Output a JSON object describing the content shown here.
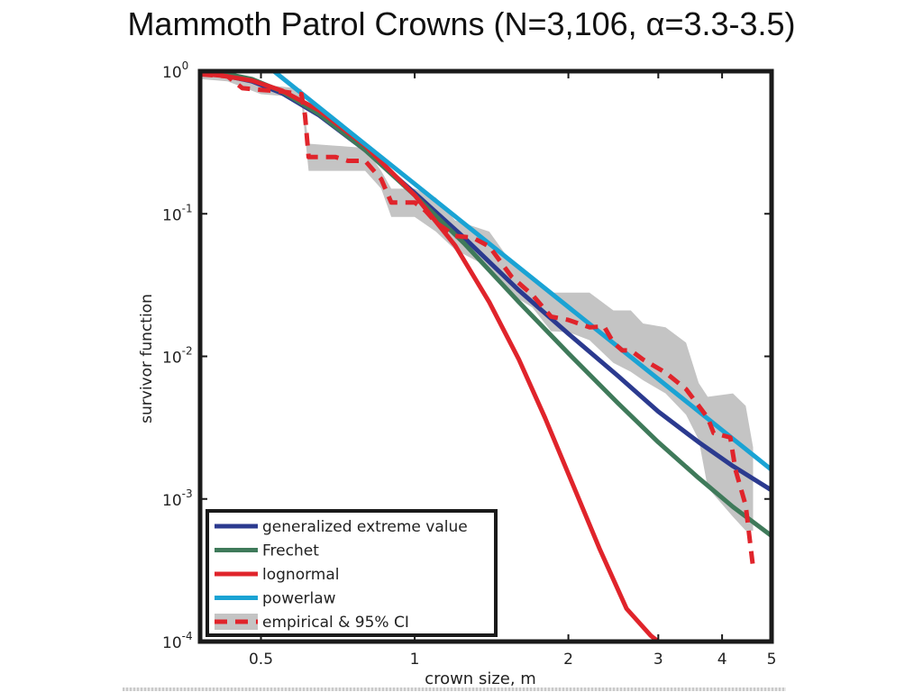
{
  "page": {
    "title": "Mammoth Patrol Crowns (N=3,106, α=3.3-3.5)"
  },
  "colors": {
    "generalized_extreme_value": "#2b3a8f",
    "frechet": "#3f7a5a",
    "lognormal": "#e0242b",
    "powerlaw": "#1aa3d4",
    "empirical": "#e0242b",
    "ci_band": "#c4c4c4",
    "axes": "#1a1a1a"
  },
  "chart_data": {
    "type": "line",
    "xscale": "log",
    "yscale": "log",
    "xlabel": "crown size, m",
    "ylabel": "survivor function",
    "xlim": [
      0.38,
      5
    ],
    "ylim": [
      0.0001,
      1
    ],
    "xticks": [
      {
        "value": 0.5,
        "label": "0.5"
      },
      {
        "value": 1,
        "label": "1"
      },
      {
        "value": 2,
        "label": "2"
      },
      {
        "value": 3,
        "label": "3"
      },
      {
        "value": 4,
        "label": "4"
      },
      {
        "value": 5,
        "label": "5"
      }
    ],
    "yticks": [
      {
        "value": 1,
        "base": "10",
        "exp": "0"
      },
      {
        "value": 0.1,
        "base": "10",
        "exp": "-1"
      },
      {
        "value": 0.01,
        "base": "10",
        "exp": "-2"
      },
      {
        "value": 0.001,
        "base": "10",
        "exp": "-3"
      },
      {
        "value": 0.0001,
        "base": "10",
        "exp": "-4"
      }
    ],
    "grid": false,
    "legend_position": "lower-left",
    "series": [
      {
        "name": "generalized extreme value",
        "style": "solid",
        "color_key": "generalized_extreme_value",
        "x": [
          0.38,
          0.42,
          0.48,
          0.55,
          0.65,
          0.8,
          1.0,
          1.25,
          1.6,
          2.0,
          2.5,
          3.0,
          3.6,
          4.2,
          5.0
        ],
        "y": [
          0.98,
          0.94,
          0.85,
          0.7,
          0.49,
          0.28,
          0.14,
          0.068,
          0.029,
          0.0144,
          0.0073,
          0.0041,
          0.0025,
          0.0017,
          0.00115
        ]
      },
      {
        "name": "Frechet",
        "style": "solid",
        "color_key": "frechet",
        "x": [
          0.38,
          0.42,
          0.48,
          0.55,
          0.65,
          0.8,
          1.0,
          1.25,
          1.6,
          2.0,
          2.5,
          3.0,
          3.6,
          4.2,
          5.0
        ],
        "y": [
          0.99,
          0.97,
          0.88,
          0.72,
          0.5,
          0.28,
          0.135,
          0.062,
          0.024,
          0.0105,
          0.0047,
          0.0025,
          0.0014,
          0.00088,
          0.00055
        ]
      },
      {
        "name": "lognormal",
        "style": "solid",
        "color_key": "lognormal",
        "x": [
          0.38,
          0.42,
          0.48,
          0.55,
          0.65,
          0.8,
          1.0,
          1.2,
          1.4,
          1.6,
          1.8,
          2.0,
          2.3,
          2.6,
          2.9,
          3.0
        ],
        "y": [
          0.96,
          0.93,
          0.86,
          0.73,
          0.53,
          0.3,
          0.135,
          0.06,
          0.024,
          0.0095,
          0.0037,
          0.0015,
          0.00045,
          0.00017,
          0.00011,
          0.0001
        ]
      },
      {
        "name": "powerlaw",
        "style": "solid",
        "color_key": "powerlaw",
        "x": [
          0.53,
          5.0
        ],
        "y": [
          1.0,
          0.0016
        ]
      },
      {
        "name": "empirical & 95% CI",
        "style": "dashed",
        "color_key": "empirical",
        "x": [
          0.38,
          0.43,
          0.46,
          0.5,
          0.55,
          0.6,
          0.61,
          0.62,
          0.7,
          0.74,
          0.8,
          0.86,
          0.9,
          0.95,
          1.0,
          1.05,
          1.1,
          1.2,
          1.3,
          1.4,
          1.55,
          1.7,
          1.85,
          2.0,
          2.2,
          2.35,
          2.45,
          2.55,
          2.65,
          2.8,
          3.1,
          3.4,
          3.6,
          3.75,
          3.85,
          4.15,
          4.25,
          4.45,
          4.6
        ],
        "y": [
          0.95,
          0.92,
          0.76,
          0.74,
          0.72,
          0.69,
          0.49,
          0.25,
          0.25,
          0.235,
          0.235,
          0.175,
          0.12,
          0.12,
          0.12,
          0.105,
          0.087,
          0.07,
          0.068,
          0.059,
          0.036,
          0.027,
          0.019,
          0.018,
          0.016,
          0.0162,
          0.0125,
          0.011,
          0.011,
          0.0095,
          0.0077,
          0.0059,
          0.0045,
          0.0037,
          0.0029,
          0.0027,
          0.0016,
          0.0009,
          0.00033
        ]
      }
    ],
    "ci_band": {
      "x": [
        0.38,
        0.43,
        0.5,
        0.55,
        0.6,
        0.62,
        0.7,
        0.8,
        0.86,
        0.9,
        1.0,
        1.1,
        1.2,
        1.4,
        1.55,
        1.7,
        1.85,
        2.0,
        2.2,
        2.45,
        2.65,
        2.8,
        3.1,
        3.4,
        3.6,
        3.75,
        4.2,
        4.45,
        4.6
      ],
      "upper": [
        1.0,
        1.0,
        0.8,
        0.78,
        0.75,
        0.31,
        0.3,
        0.29,
        0.2,
        0.15,
        0.15,
        0.13,
        0.09,
        0.075,
        0.045,
        0.034,
        0.028,
        0.028,
        0.028,
        0.021,
        0.021,
        0.017,
        0.016,
        0.0125,
        0.0065,
        0.0052,
        0.0055,
        0.0045,
        0.0023
      ],
      "lower": [
        0.88,
        0.85,
        0.69,
        0.67,
        0.62,
        0.2,
        0.2,
        0.2,
        0.15,
        0.095,
        0.095,
        0.075,
        0.056,
        0.042,
        0.027,
        0.022,
        0.015,
        0.0148,
        0.013,
        0.009,
        0.0078,
        0.0068,
        0.0055,
        0.0039,
        0.0026,
        0.0012,
        0.00075,
        0.0006,
        0.0006
      ]
    }
  }
}
